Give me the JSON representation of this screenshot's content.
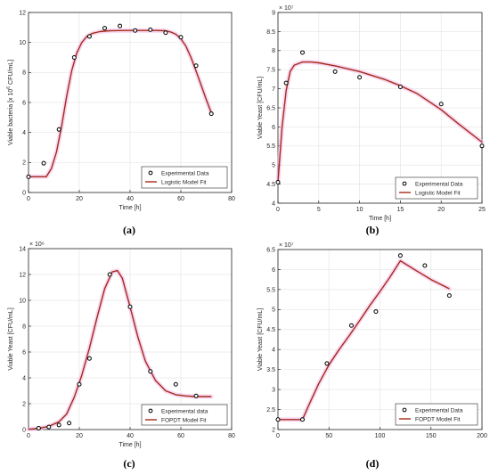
{
  "colors": {
    "fit_line": "#a52a1a",
    "marker": "#000000",
    "grid": "#e6e6e6",
    "axis": "#262626",
    "glow": "#f2b8e6"
  },
  "chart_data": [
    {
      "panel": "(a)",
      "type": "scatter",
      "xlabel": "Time [h]",
      "ylabel": "Viable bacteria [x 10",
      "ylabel_unit": "CFU/mL]",
      "ylabel_exp": "6",
      "exponent_label": "",
      "xlim": [
        0,
        80
      ],
      "ylim": [
        0,
        12
      ],
      "xticks": [
        0,
        20,
        40,
        60,
        80
      ],
      "yticks": [
        0,
        2,
        4,
        6,
        8,
        10,
        12
      ],
      "grid": true,
      "legend_position": "bottom-right",
      "series": [
        {
          "name": "Experimental Data",
          "kind": "markers",
          "x": [
            0,
            6,
            12,
            18,
            24,
            30,
            36,
            42,
            48,
            54,
            60,
            66,
            72
          ],
          "y": [
            1.05,
            1.95,
            4.2,
            9.0,
            10.4,
            10.95,
            11.1,
            10.8,
            10.85,
            10.65,
            10.35,
            8.45,
            5.25
          ]
        },
        {
          "name": "Logistic Model Fit",
          "kind": "line",
          "x": [
            0,
            7,
            9,
            11,
            13,
            15,
            17,
            19,
            21,
            23,
            25,
            28,
            32,
            38,
            44,
            50,
            54,
            56,
            58,
            60,
            62,
            64,
            66,
            68,
            70,
            72
          ],
          "y": [
            1.05,
            1.05,
            1.6,
            2.7,
            4.4,
            6.4,
            8.1,
            9.3,
            10.0,
            10.4,
            10.6,
            10.72,
            10.78,
            10.8,
            10.8,
            10.8,
            10.78,
            10.7,
            10.55,
            10.25,
            9.75,
            9.0,
            8.1,
            7.15,
            6.2,
            5.3
          ]
        }
      ]
    },
    {
      "panel": "(b)",
      "type": "scatter",
      "xlabel": "Time [h]",
      "ylabel": "Viable Yeast [CFU/mL]",
      "exponent_label": "× 10⁷",
      "xlim": [
        0,
        25
      ],
      "ylim": [
        4,
        9
      ],
      "xticks": [
        0,
        5,
        10,
        15,
        20,
        25
      ],
      "yticks": [
        4,
        4.5,
        5,
        5.5,
        6,
        6.5,
        7,
        7.5,
        8,
        8.5,
        9
      ],
      "grid": true,
      "legend_position": "bottom-right",
      "series": [
        {
          "name": "Experimental Data",
          "kind": "markers",
          "x": [
            0,
            1,
            3,
            7,
            10,
            15,
            20,
            25
          ],
          "y": [
            4.55,
            7.15,
            7.95,
            7.45,
            7.3,
            7.05,
            6.6,
            5.5
          ]
        },
        {
          "name": "Logistic Model Fit",
          "kind": "line",
          "x": [
            0,
            0.5,
            1,
            1.5,
            2,
            3,
            4,
            5,
            7,
            10,
            13,
            15,
            17,
            20,
            22,
            25
          ],
          "y": [
            4.55,
            6.0,
            6.95,
            7.45,
            7.62,
            7.7,
            7.7,
            7.68,
            7.6,
            7.45,
            7.25,
            7.08,
            6.88,
            6.45,
            6.1,
            5.6
          ]
        }
      ]
    },
    {
      "panel": "(c)",
      "type": "scatter",
      "xlabel": "Time [h]",
      "ylabel": "Viable Yeast [CFU/mL]",
      "exponent_label": "× 10⁶",
      "xlim": [
        0,
        80
      ],
      "ylim": [
        0,
        14
      ],
      "xticks": [
        0,
        20,
        40,
        60,
        80
      ],
      "yticks": [
        0,
        2,
        4,
        6,
        8,
        10,
        12,
        14
      ],
      "grid": true,
      "legend_position": "bottom-right",
      "series": [
        {
          "name": "Experimental data",
          "kind": "markers",
          "x": [
            4,
            8,
            12,
            16,
            20,
            24,
            32,
            40,
            48,
            58,
            66
          ],
          "y": [
            0.1,
            0.2,
            0.35,
            0.5,
            3.5,
            5.5,
            12.0,
            9.5,
            4.5,
            3.5,
            2.6
          ]
        },
        {
          "name": "FOPDT Model Fit",
          "kind": "line",
          "x": [
            0,
            4,
            8,
            12,
            15,
            18,
            21,
            24,
            27,
            30,
            33,
            35,
            37,
            40,
            43,
            46,
            50,
            54,
            58,
            62,
            66,
            72
          ],
          "y": [
            0.02,
            0.1,
            0.25,
            0.6,
            1.2,
            2.5,
            4.2,
            6.3,
            8.7,
            10.9,
            12.2,
            12.3,
            11.7,
            9.5,
            7.2,
            5.3,
            3.8,
            3.0,
            2.7,
            2.6,
            2.55,
            2.55
          ]
        }
      ]
    },
    {
      "panel": "(d)",
      "type": "scatter",
      "xlabel": "",
      "ylabel": "Viable Yeast [CFU/mL]",
      "exponent_label": "× 10⁷",
      "xlim": [
        0,
        200
      ],
      "ylim": [
        2,
        6.5
      ],
      "xticks": [
        0,
        50,
        100,
        150,
        200
      ],
      "yticks": [
        2,
        2.5,
        3,
        3.5,
        4,
        4.5,
        5,
        5.5,
        6,
        6.5
      ],
      "grid": true,
      "legend_position": "bottom-right",
      "series": [
        {
          "name": "Experimental Data",
          "kind": "markers",
          "x": [
            0,
            24,
            48,
            72,
            96,
            120,
            144,
            168
          ],
          "y": [
            2.25,
            2.25,
            3.65,
            4.6,
            4.95,
            6.35,
            6.1,
            5.35
          ]
        },
        {
          "name": "FOPDT Model Fit",
          "kind": "line",
          "x": [
            0,
            24,
            30,
            40,
            50,
            60,
            70,
            80,
            90,
            100,
            110,
            120,
            135,
            150,
            168
          ],
          "y": [
            2.25,
            2.25,
            2.6,
            3.15,
            3.62,
            4.0,
            4.35,
            4.72,
            5.1,
            5.45,
            5.82,
            6.22,
            5.98,
            5.75,
            5.52
          ]
        }
      ]
    }
  ]
}
